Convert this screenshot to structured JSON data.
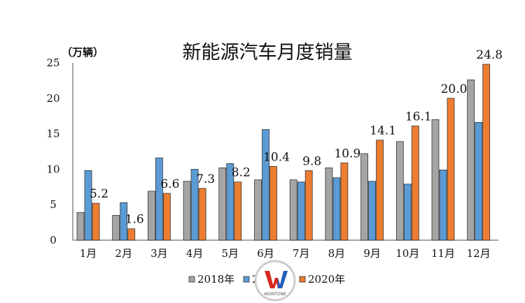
{
  "chart_data": {
    "type": "bar",
    "title": "新能源汽车月度销量",
    "ylabel": "（万辆）",
    "xlabel": "",
    "categories": [
      "1月",
      "2月",
      "3月",
      "4月",
      "5月",
      "6月",
      "7月",
      "8月",
      "9月",
      "10月",
      "11月",
      "12月"
    ],
    "ylim": [
      0,
      25
    ],
    "yticks": [
      0,
      5,
      10,
      15,
      20,
      25
    ],
    "grid": false,
    "legend_position": "bottom",
    "series": [
      {
        "name": "2018年",
        "color": "#a5a5a5",
        "values": [
          3.9,
          3.5,
          6.9,
          8.3,
          10.2,
          8.5,
          8.5,
          10.2,
          12.2,
          13.9,
          17.0,
          22.6
        ],
        "data_labels": false
      },
      {
        "name": "2019年",
        "color": "#5b9bd5",
        "values": [
          9.8,
          5.3,
          11.6,
          10.0,
          10.8,
          15.6,
          8.2,
          8.8,
          8.3,
          7.9,
          9.9,
          16.6
        ],
        "data_labels": false
      },
      {
        "name": "2020年",
        "color": "#ed7d31",
        "values": [
          5.2,
          1.6,
          6.6,
          7.3,
          8.2,
          10.4,
          9.8,
          10.9,
          14.1,
          16.1,
          20.0,
          24.8
        ],
        "data_labels": true
      }
    ]
  },
  "watermark_text": "WONTONE"
}
